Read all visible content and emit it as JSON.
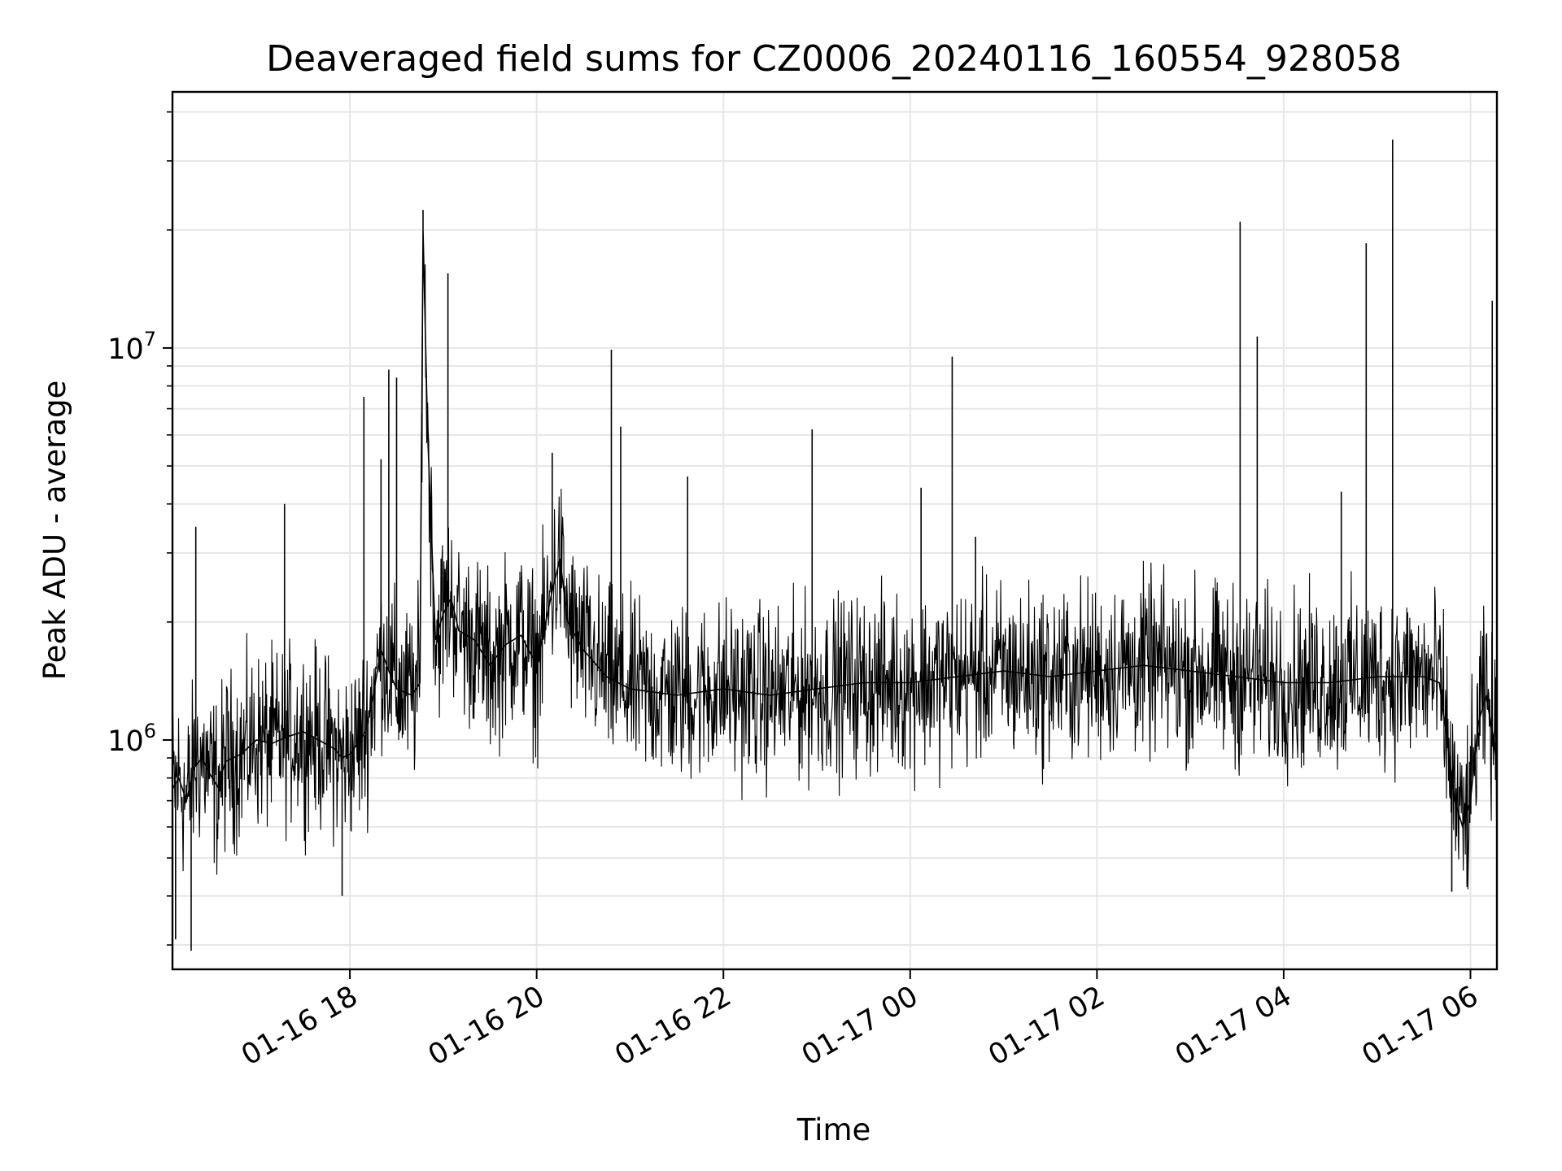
{
  "chart_data": {
    "type": "line",
    "title": "Deaveraged field sums for CZ0006_20240116_160554_928058",
    "xlabel": "Time",
    "ylabel": "Peak ADU - average",
    "yscale": "log",
    "ylim": [
      260000,
      45000000
    ],
    "xlim": [
      "2024-01-16 16:06",
      "2024-01-17 06:17"
    ],
    "x_ticks": [
      {
        "t": "2024-01-16 18:00",
        "label": "01-16 18"
      },
      {
        "t": "2024-01-16 20:00",
        "label": "01-16 20"
      },
      {
        "t": "2024-01-16 22:00",
        "label": "01-16 22"
      },
      {
        "t": "2024-01-17 00:00",
        "label": "01-17 00"
      },
      {
        "t": "2024-01-17 02:00",
        "label": "01-17 02"
      },
      {
        "t": "2024-01-17 04:00",
        "label": "01-17 04"
      },
      {
        "t": "2024-01-17 06:00",
        "label": "01-17 06"
      }
    ],
    "y_major_ticks": [
      {
        "value": 1000000,
        "base": "10",
        "exp": "6"
      },
      {
        "value": 10000000,
        "base": "10",
        "exp": "7"
      }
    ],
    "grid": true,
    "line_color": "#000000",
    "series": [
      {
        "x": [
          "2024-01-16 16:06",
          "2024-01-16 16:10",
          "2024-01-16 16:15",
          "2024-01-16 16:20",
          "2024-01-16 16:25",
          "2024-01-16 16:30",
          "2024-01-16 16:35",
          "2024-01-16 16:40",
          "2024-01-16 16:50",
          "2024-01-16 17:00",
          "2024-01-16 17:10",
          "2024-01-16 17:20",
          "2024-01-16 17:30",
          "2024-01-16 17:40",
          "2024-01-16 17:50",
          "2024-01-16 17:55",
          "2024-01-16 18:00",
          "2024-01-16 18:10",
          "2024-01-16 18:15",
          "2024-01-16 18:20",
          "2024-01-16 18:25",
          "2024-01-16 18:30",
          "2024-01-16 18:40",
          "2024-01-16 18:45",
          "2024-01-16 18:47",
          "2024-01-16 18:50",
          "2024-01-16 18:55",
          "2024-01-16 19:00",
          "2024-01-16 19:05",
          "2024-01-16 19:10",
          "2024-01-16 19:20",
          "2024-01-16 19:30",
          "2024-01-16 19:40",
          "2024-01-16 19:50",
          "2024-01-16 20:00",
          "2024-01-16 20:10",
          "2024-01-16 20:15",
          "2024-01-16 20:20",
          "2024-01-16 20:30",
          "2024-01-16 20:45",
          "2024-01-16 21:00",
          "2024-01-16 21:30",
          "2024-01-16 22:00",
          "2024-01-16 22:30",
          "2024-01-16 23:00",
          "2024-01-16 23:30",
          "2024-01-17 00:00",
          "2024-01-17 00:30",
          "2024-01-17 01:00",
          "2024-01-17 01:30",
          "2024-01-17 02:00",
          "2024-01-17 02:30",
          "2024-01-17 03:00",
          "2024-01-17 03:30",
          "2024-01-17 04:00",
          "2024-01-17 04:30",
          "2024-01-17 05:00",
          "2024-01-17 05:30",
          "2024-01-17 05:40",
          "2024-01-17 05:45",
          "2024-01-17 05:50",
          "2024-01-17 05:55",
          "2024-01-17 06:00",
          "2024-01-17 06:05",
          "2024-01-17 06:10",
          "2024-01-17 06:15",
          "2024-01-17 06:17"
        ],
        "y": [
          750000,
          800000,
          700000,
          850000,
          900000,
          820000,
          760000,
          880000,
          920000,
          1000000,
          980000,
          1020000,
          1050000,
          1000000,
          950000,
          900000,
          920000,
          1050000,
          1300000,
          1700000,
          1500000,
          1350000,
          1300000,
          1400000,
          20000000,
          6000000,
          1800000,
          2100000,
          2300000,
          1900000,
          1800000,
          1550000,
          1750000,
          1850000,
          1550000,
          2400000,
          2900000,
          2000000,
          1700000,
          1450000,
          1350000,
          1300000,
          1350000,
          1300000,
          1350000,
          1400000,
          1400000,
          1450000,
          1500000,
          1450000,
          1500000,
          1550000,
          1500000,
          1450000,
          1400000,
          1400000,
          1450000,
          1450000,
          1400000,
          1000000,
          700000,
          600000,
          700000,
          1100000,
          1300000,
          1000000,
          850000
        ]
      }
    ],
    "spikes": [
      {
        "x": "2024-01-16 16:08",
        "y": 310000
      },
      {
        "x": "2024-01-16 16:18",
        "y": 290000
      },
      {
        "x": "2024-01-16 16:21",
        "y": 3500000
      },
      {
        "x": "2024-01-16 17:18",
        "y": 4000000
      },
      {
        "x": "2024-01-16 17:55",
        "y": 400000
      },
      {
        "x": "2024-01-16 18:09",
        "y": 7500000
      },
      {
        "x": "2024-01-16 18:20",
        "y": 5200000
      },
      {
        "x": "2024-01-16 18:25",
        "y": 8800000
      },
      {
        "x": "2024-01-16 18:30",
        "y": 8400000
      },
      {
        "x": "2024-01-16 18:47",
        "y": 22500000
      },
      {
        "x": "2024-01-16 19:03",
        "y": 15500000
      },
      {
        "x": "2024-01-16 20:10",
        "y": 5400000
      },
      {
        "x": "2024-01-16 20:48",
        "y": 9900000
      },
      {
        "x": "2024-01-16 20:54",
        "y": 6300000
      },
      {
        "x": "2024-01-16 21:37",
        "y": 4700000
      },
      {
        "x": "2024-01-16 22:57",
        "y": 6200000
      },
      {
        "x": "2024-01-17 00:07",
        "y": 4400000
      },
      {
        "x": "2024-01-17 00:27",
        "y": 9500000
      },
      {
        "x": "2024-01-17 00:42",
        "y": 3300000
      },
      {
        "x": "2024-01-17 03:32",
        "y": 21000000
      },
      {
        "x": "2024-01-17 03:43",
        "y": 10700000
      },
      {
        "x": "2024-01-17 04:37",
        "y": 4300000
      },
      {
        "x": "2024-01-17 04:53",
        "y": 18500000
      },
      {
        "x": "2024-01-17 05:10",
        "y": 34000000
      },
      {
        "x": "2024-01-17 05:48",
        "y": 410000
      },
      {
        "x": "2024-01-17 06:14",
        "y": 13200000
      }
    ]
  }
}
